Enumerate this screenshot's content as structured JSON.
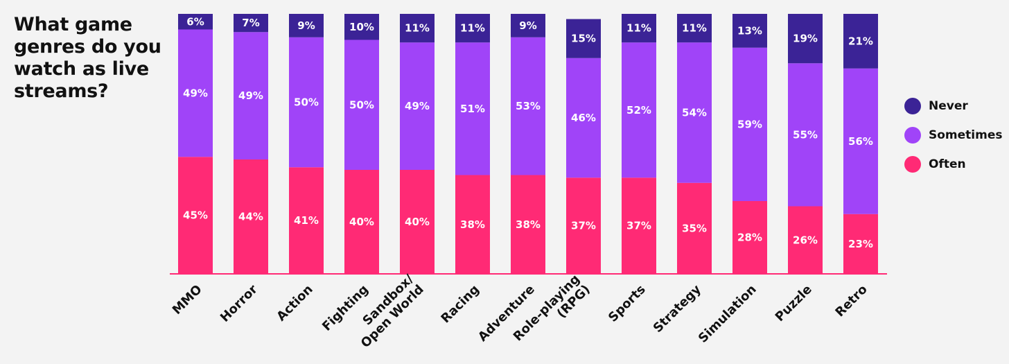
{
  "title": "What game genres do you watch as live streams?",
  "colors": {
    "never": "#3b2396",
    "sometimes": "#a044f8",
    "often": "#ff2a75"
  },
  "legend": [
    {
      "key": "never",
      "label": "Never"
    },
    {
      "key": "sometimes",
      "label": "Sometimes"
    },
    {
      "key": "often",
      "label": "Often"
    }
  ],
  "chart_data": {
    "type": "bar",
    "stacked": true,
    "orientation": "vertical",
    "categories": [
      [
        "MMO"
      ],
      [
        "Horror"
      ],
      [
        "Action"
      ],
      [
        "Fighting"
      ],
      [
        "Sandbox/",
        "Open World"
      ],
      [
        "Racing"
      ],
      [
        "Adventure"
      ],
      [
        "Role-playing",
        "(RPG)"
      ],
      [
        "Sports"
      ],
      [
        "Strategy"
      ],
      [
        "Simulation"
      ],
      [
        "Puzzle"
      ],
      [
        "Retro"
      ]
    ],
    "series": [
      {
        "name": "Often",
        "key": "often",
        "values": [
          45,
          44,
          41,
          40,
          40,
          38,
          38,
          37,
          37,
          35,
          28,
          26,
          23
        ]
      },
      {
        "name": "Sometimes",
        "key": "sometimes",
        "values": [
          49,
          49,
          50,
          50,
          49,
          51,
          53,
          46,
          52,
          54,
          59,
          55,
          56
        ]
      },
      {
        "name": "Never",
        "key": "never",
        "values": [
          6,
          7,
          9,
          10,
          11,
          11,
          9,
          15,
          11,
          11,
          13,
          19,
          21
        ]
      }
    ],
    "value_suffix": "%",
    "ylim": [
      0,
      100
    ],
    "xlabel": "",
    "ylabel": "",
    "grid": false,
    "legend_position": "right"
  }
}
